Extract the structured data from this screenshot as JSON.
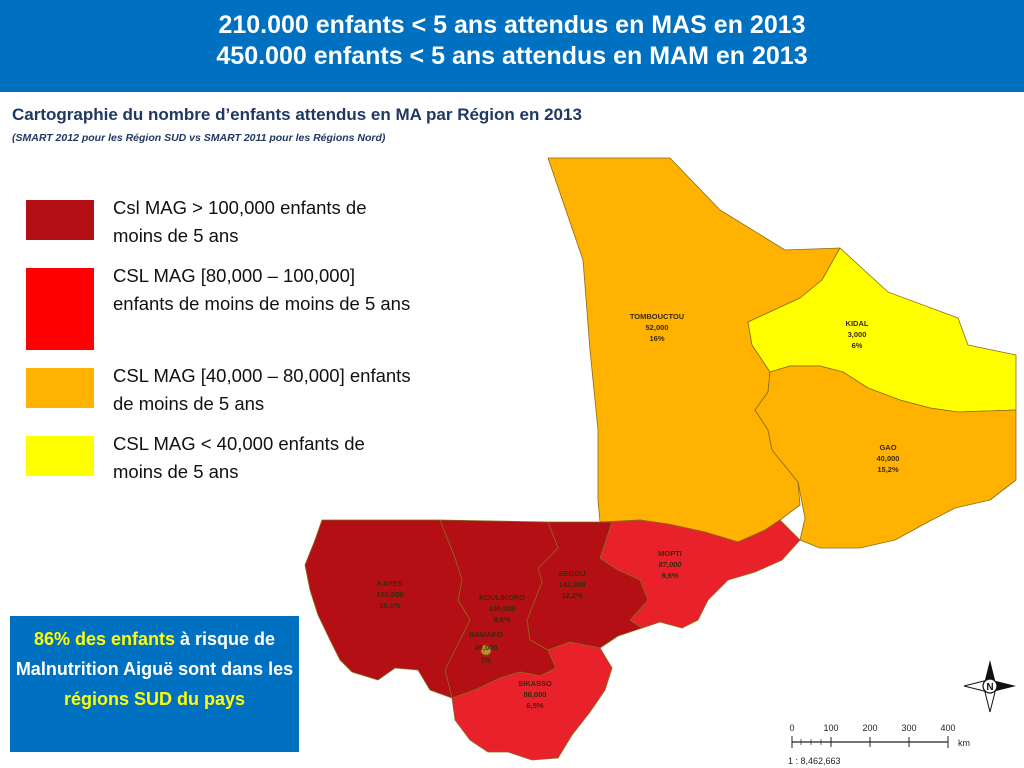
{
  "header": {
    "line1": "210.000 enfants < 5 ans attendus en MAS en 2013",
    "line2": "450.000 enfants < 5 ans attendus en MAM en 2013"
  },
  "subtitle": "Cartographie du nombre d’enfants attendus en MA par Région en 2013",
  "source": "(SMART 2012 pour les Région SUD vs SMART 2011 pour les Régions Nord)",
  "legend": [
    {
      "label": "Csl MAG > 100,000 enfants de moins de 5 ans",
      "color": "#b30f14"
    },
    {
      "label": "CSL MAG [80,000 – 100,000] enfants de moins de moins de 5 ans",
      "color": "#ff0000"
    },
    {
      "label": "CSL MAG [40,000 – 80,000] enfants de moins de 5 ans",
      "color": "#ffb300"
    },
    {
      "label": "CSL MAG < 40,000 enfants de moins de 5 ans",
      "color": "#ffff00"
    }
  ],
  "regions": [
    {
      "name": "TOMBOUCTOU",
      "count": "52,000",
      "pct": "16%"
    },
    {
      "name": "KIDAL",
      "count": "3,000",
      "pct": "6%"
    },
    {
      "name": "GAO",
      "count": "40,000",
      "pct": "15,2%"
    },
    {
      "name": "MOPTI",
      "count": "87,000",
      "pct": "8,6%"
    },
    {
      "name": "SEGOU",
      "count": "142,000",
      "pct": "12,2%"
    },
    {
      "name": "KAYES",
      "count": "101,000",
      "pct": "10,1%"
    },
    {
      "name": "KOULIKORO",
      "count": "100,000",
      "pct": "8,6%"
    },
    {
      "name": "BAMAKO",
      "count": "49,000",
      "pct": "7%"
    },
    {
      "name": "SIKASSO",
      "count": "86,000",
      "pct": "6,5%"
    }
  ],
  "callout": {
    "part1": "86% des enfants",
    "part2": " à risque de Malnutrition Aiguë sont dans les ",
    "part3": "régions SUD du pays"
  },
  "scale": {
    "ticks": [
      "0",
      "100",
      "200",
      "300",
      "400"
    ],
    "unit": "km",
    "ratio": "1 : 8,462,663"
  },
  "compass": {
    "letter": "N",
    "icon": "north-arrow-icon"
  },
  "colors": {
    "banner": "#0070c0",
    "subtitle": "#1f3864",
    "highlight": "#ffff00"
  }
}
